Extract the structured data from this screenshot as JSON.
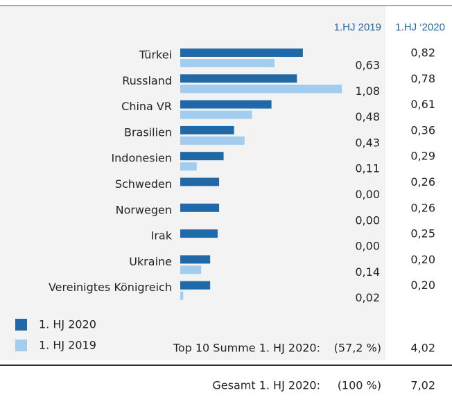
{
  "chart_data": {
    "type": "bar",
    "orientation": "horizontal",
    "categories": [
      "Türkei",
      "Russland",
      "China VR",
      "Brasilien",
      "Indonesien",
      "Schweden",
      "Norwegen",
      "Irak",
      "Ukraine",
      "Vereinigtes Königreich"
    ],
    "column_headers": [
      "1.HJ 2019",
      "1.HJ ‘2020"
    ],
    "series": [
      {
        "name": "1. HJ 2020",
        "color": "#1f69a8",
        "values": [
          0.82,
          0.78,
          0.61,
          0.36,
          0.29,
          0.26,
          0.26,
          0.25,
          0.2,
          0.2
        ],
        "value_labels": [
          "0,82",
          "0,78",
          "0,61",
          "0,36",
          "0,29",
          "0,26",
          "0,26",
          "0,25",
          "0,20",
          "0,20"
        ]
      },
      {
        "name": "1. HJ 2019",
        "color": "#a3cdee",
        "values": [
          0.63,
          1.08,
          0.48,
          0.43,
          0.11,
          0.0,
          0.0,
          0.0,
          0.14,
          0.02
        ],
        "value_labels": [
          "0,63",
          "1,08",
          "0,48",
          "0,43",
          "0,11",
          "0,00",
          "0,00",
          "0,00",
          "0,14",
          "0,02"
        ]
      }
    ],
    "legend": "bottom-left",
    "summary": [
      {
        "label": "Top 10 Summe 1. HJ 2020:",
        "share": "(57,2 %)",
        "total": "4,02"
      },
      {
        "label": "Gesamt 1. HJ 2020:",
        "share": "(100 %)",
        "total": "7,02"
      }
    ]
  }
}
